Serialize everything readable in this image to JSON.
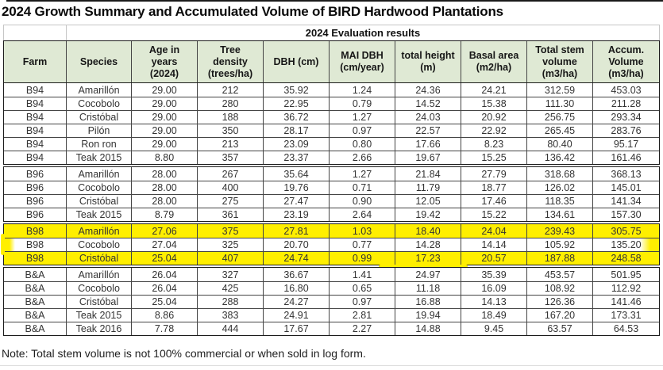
{
  "chart_data": {
    "type": "table",
    "title": "2024 Growth Summary and Accumulated Volume of BIRD Hardwood Plantations",
    "subtitle": "2024 Evaluation results",
    "columns": [
      "Farm",
      "Species",
      "Age in\nyears\n(2024)",
      "Tree\ndensity\n(trees/ha)",
      "DBH (cm)",
      "MAI DBH\n(cm/year)",
      "total height\n(m)",
      "Basal area\n(m2/ha)",
      "Total stem\nvolume\n(m3/ha)",
      "Accum.\nVolume\n(m3/ha)"
    ],
    "groups": [
      {
        "farm": "B94",
        "highlighted": false,
        "rows": [
          [
            "B94",
            "Amarillón",
            "29.00",
            "212",
            "35.92",
            "1.24",
            "24.36",
            "24.21",
            "312.59",
            "453.03"
          ],
          [
            "B94",
            "Cocobolo",
            "29.00",
            "280",
            "22.95",
            "0.79",
            "14.52",
            "15.38",
            "111.30",
            "211.28"
          ],
          [
            "B94",
            "Cristóbal",
            "29.00",
            "188",
            "36.72",
            "1.27",
            "24.03",
            "20.92",
            "256.75",
            "293.34"
          ],
          [
            "B94",
            "Pilón",
            "29.00",
            "350",
            "28.17",
            "0.97",
            "22.57",
            "22.92",
            "265.45",
            "283.76"
          ],
          [
            "B94",
            "Ron ron",
            "29.00",
            "213",
            "23.09",
            "0.80",
            "17.66",
            "8.23",
            "80.40",
            "95.17"
          ],
          [
            "B94",
            "Teak 2015",
            "8.80",
            "357",
            "23.37",
            "2.66",
            "19.67",
            "15.25",
            "136.42",
            "161.46"
          ]
        ]
      },
      {
        "farm": "B96",
        "highlighted": false,
        "rows": [
          [
            "B96",
            "Amarillón",
            "28.00",
            "267",
            "35.64",
            "1.27",
            "21.84",
            "27.79",
            "318.68",
            "368.13"
          ],
          [
            "B96",
            "Cocobolo",
            "28.00",
            "400",
            "19.76",
            "0.71",
            "11.79",
            "18.77",
            "126.02",
            "145.01"
          ],
          [
            "B96",
            "Cristóbal",
            "28.00",
            "275",
            "27.47",
            "0.90",
            "12.05",
            "17.46",
            "118.35",
            "141.34"
          ],
          [
            "B96",
            "Teak 2015",
            "8.79",
            "361",
            "23.19",
            "2.64",
            "19.42",
            "15.22",
            "134.61",
            "157.30"
          ]
        ]
      },
      {
        "farm": "B98",
        "highlighted": true,
        "rows": [
          [
            "B98",
            "Amarillón",
            "27.06",
            "375",
            "27.81",
            "1.03",
            "18.40",
            "24.04",
            "239.43",
            "305.75"
          ],
          [
            "B98",
            "Cocobolo",
            "27.04",
            "325",
            "20.70",
            "0.77",
            "14.28",
            "14.14",
            "105.92",
            "135.20"
          ],
          [
            "B98",
            "Cristóbal",
            "25.04",
            "407",
            "24.74",
            "0.99",
            "17.23",
            "20.57",
            "187.88",
            "248.58"
          ]
        ]
      },
      {
        "farm": "B&A",
        "highlighted": false,
        "rows": [
          [
            "B&A",
            "Amarillón",
            "26.04",
            "327",
            "36.67",
            "1.41",
            "24.97",
            "35.39",
            "453.57",
            "501.95"
          ],
          [
            "B&A",
            "Cocobolo",
            "26.04",
            "425",
            "16.80",
            "0.65",
            "11.18",
            "16.09",
            "108.92",
            "112.92"
          ],
          [
            "B&A",
            "Cristóbal",
            "25.04",
            "288",
            "24.27",
            "0.97",
            "16.88",
            "14.13",
            "126.36",
            "141.46"
          ],
          [
            "B&A",
            "Teak 2015",
            "8.86",
            "383",
            "24.91",
            "2.81",
            "19.94",
            "18.49",
            "167.20",
            "173.31"
          ],
          [
            "B&A",
            "Teak 2016",
            "7.78",
            "444",
            "17.67",
            "2.27",
            "14.88",
            "9.45",
            "63.57",
            "64.53"
          ]
        ]
      }
    ],
    "note": "Note: Total stem volume is not 100% commercial or when sold in log form.",
    "colors": {
      "header_bg": "#dfe9d4",
      "highlight": "#ffef00",
      "grid_line": "#454545",
      "outer_border": "#1b1b1b"
    },
    "layout_hints": {
      "grid": "on",
      "highlighted_farm": "B98",
      "group_separator": "double-line gap between farm groups"
    }
  }
}
